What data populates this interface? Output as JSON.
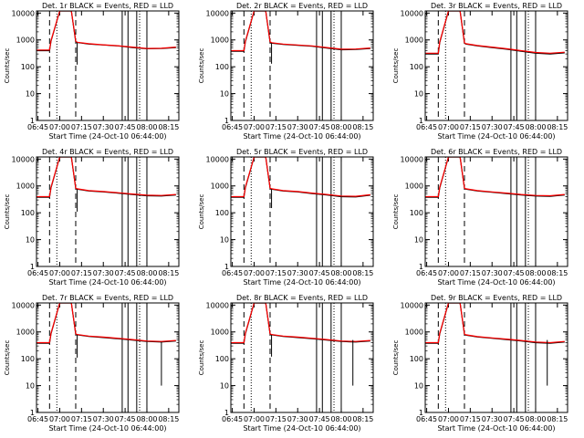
{
  "chart_data": [
    {
      "type": "line",
      "title": "Det. 1r  BLACK = Events, RED = LLD",
      "xlabel": "Start Time (24-Oct-10 06:44:00)",
      "ylabel": "Counts/sec",
      "x_ticks": [
        "06:45",
        "07:00",
        "07:15",
        "07:30",
        "07:45",
        "08:00",
        "08:15"
      ],
      "y_ticks": [
        "1",
        "10",
        "100",
        "1000",
        "10000"
      ],
      "y_scale": "log",
      "ylim": [
        1,
        12000
      ],
      "xlim": [
        "06:44",
        "08:22"
      ],
      "series": [
        {
          "color": "#000000",
          "x": [
            "06:44",
            "06:53",
            "06:54",
            "07:00",
            "07:08",
            "07:11",
            "07:12",
            "07:20",
            "07:30",
            "07:40",
            "07:50",
            "08:00",
            "08:10",
            "08:20"
          ],
          "y": [
            400,
            400,
            900,
            12000,
            12000,
            850,
            800,
            700,
            650,
            600,
            520,
            470,
            480,
            520
          ]
        },
        {
          "color": "#ff0000",
          "x": [
            "06:44",
            "06:53",
            "06:54",
            "07:00",
            "07:08",
            "07:11",
            "07:12",
            "07:20",
            "07:30",
            "07:40",
            "07:50",
            "08:00",
            "08:10",
            "08:20"
          ],
          "y": [
            420,
            420,
            950,
            12000,
            12000,
            900,
            820,
            720,
            660,
            610,
            540,
            480,
            490,
            540
          ]
        }
      ],
      "vlines": {
        "dashed": [
          "06:53",
          "07:11"
        ],
        "dotted": [
          "06:58",
          "07:55"
        ],
        "solid": [
          "07:43",
          "07:47",
          "07:53",
          "08:00"
        ]
      },
      "drops": [
        {
          "x": "07:12",
          "y": 120
        }
      ]
    },
    {
      "type": "line",
      "title": "Det. 2r  BLACK = Events, RED = LLD",
      "xlabel": "Start Time (24-Oct-10 06:44:00)",
      "ylabel": "Counts/sec",
      "x_ticks": [
        "06:45",
        "07:00",
        "07:15",
        "07:30",
        "07:45",
        "08:00",
        "08:15"
      ],
      "y_ticks": [
        "1",
        "10",
        "100",
        "1000",
        "10000"
      ],
      "y_scale": "log",
      "ylim": [
        1,
        12000
      ],
      "xlim": [
        "06:44",
        "08:22"
      ],
      "series": [
        {
          "color": "#000000",
          "x": [
            "06:44",
            "06:53",
            "06:54",
            "07:00",
            "07:08",
            "07:11",
            "07:12",
            "07:20",
            "07:30",
            "07:40",
            "07:50",
            "08:00",
            "08:10",
            "08:20"
          ],
          "y": [
            380,
            380,
            850,
            12000,
            12000,
            800,
            760,
            680,
            630,
            580,
            500,
            430,
            440,
            480
          ]
        },
        {
          "color": "#ff0000",
          "x": [
            "06:44",
            "06:53",
            "06:54",
            "07:00",
            "07:08",
            "07:11",
            "07:12",
            "07:20",
            "07:30",
            "07:40",
            "07:50",
            "08:00",
            "08:10",
            "08:20"
          ],
          "y": [
            400,
            400,
            900,
            12000,
            12000,
            850,
            790,
            700,
            650,
            600,
            520,
            450,
            460,
            500
          ]
        }
      ],
      "vlines": {
        "dashed": [
          "06:53",
          "07:11"
        ],
        "dotted": [
          "06:58",
          "07:55"
        ],
        "solid": [
          "07:43",
          "07:47",
          "07:53",
          "08:00"
        ]
      },
      "drops": [
        {
          "x": "07:12",
          "y": 130
        }
      ]
    },
    {
      "type": "line",
      "title": "Det. 3r  BLACK = Events, RED = LLD",
      "xlabel": "Start Time (24-Oct-10 06:44:00)",
      "ylabel": "Counts/sec",
      "x_ticks": [
        "06:45",
        "07:00",
        "07:15",
        "07:30",
        "07:45",
        "08:00",
        "08:15"
      ],
      "y_ticks": [
        "1",
        "10",
        "100",
        "1000",
        "10000"
      ],
      "y_scale": "log",
      "ylim": [
        1,
        12000
      ],
      "xlim": [
        "06:44",
        "08:22"
      ],
      "series": [
        {
          "color": "#000000",
          "x": [
            "06:44",
            "06:53",
            "06:54",
            "07:00",
            "07:08",
            "07:11",
            "07:12",
            "07:20",
            "07:30",
            "07:40",
            "07:50",
            "08:00",
            "08:10",
            "08:20"
          ],
          "y": [
            300,
            300,
            800,
            12000,
            12000,
            750,
            700,
            600,
            520,
            450,
            380,
            320,
            300,
            330
          ]
        },
        {
          "color": "#ff0000",
          "x": [
            "06:44",
            "06:53",
            "06:54",
            "07:00",
            "07:08",
            "07:11",
            "07:12",
            "07:20",
            "07:30",
            "07:40",
            "07:50",
            "08:00",
            "08:10",
            "08:20"
          ],
          "y": [
            320,
            320,
            850,
            12000,
            12000,
            780,
            720,
            620,
            540,
            470,
            400,
            340,
            320,
            350
          ]
        }
      ],
      "vlines": {
        "dashed": [
          "06:53",
          "07:11"
        ],
        "dotted": [
          "06:58",
          "07:55"
        ],
        "solid": [
          "07:43",
          "07:47",
          "07:53",
          "08:00"
        ]
      },
      "drops": []
    },
    {
      "type": "line",
      "title": "Det. 4r  BLACK = Events, RED = LLD",
      "xlabel": "Start Time (24-Oct-10 06:44:00)",
      "ylabel": "Counts/sec",
      "x_ticks": [
        "06:45",
        "07:00",
        "07:15",
        "07:30",
        "07:45",
        "08:00",
        "08:15"
      ],
      "y_ticks": [
        "1",
        "10",
        "100",
        "1000",
        "10000"
      ],
      "y_scale": "log",
      "ylim": [
        1,
        12000
      ],
      "xlim": [
        "06:44",
        "08:22"
      ],
      "series": [
        {
          "color": "#000000",
          "x": [
            "06:44",
            "06:53",
            "06:54",
            "07:00",
            "07:08",
            "07:11",
            "07:12",
            "07:20",
            "07:30",
            "07:40",
            "07:50",
            "08:00",
            "08:10",
            "08:20"
          ],
          "y": [
            380,
            380,
            850,
            12000,
            12000,
            800,
            760,
            650,
            600,
            540,
            480,
            430,
            420,
            460
          ]
        },
        {
          "color": "#ff0000",
          "x": [
            "06:44",
            "06:53",
            "06:54",
            "07:00",
            "07:08",
            "07:11",
            "07:12",
            "07:20",
            "07:30",
            "07:40",
            "07:50",
            "08:00",
            "08:10",
            "08:20"
          ],
          "y": [
            400,
            400,
            900,
            12000,
            12000,
            830,
            780,
            670,
            620,
            560,
            500,
            450,
            440,
            480
          ]
        }
      ],
      "vlines": {
        "dashed": [
          "06:53",
          "07:11"
        ],
        "dotted": [
          "06:58",
          "07:55"
        ],
        "solid": [
          "07:43",
          "07:47",
          "07:53",
          "08:00"
        ]
      },
      "drops": [
        {
          "x": "07:12",
          "y": 110
        }
      ]
    },
    {
      "type": "line",
      "title": "Det. 5r  BLACK = Events, RED = LLD",
      "xlabel": "Start Time (24-Oct-10 06:44:00)",
      "ylabel": "Counts/sec",
      "x_ticks": [
        "06:45",
        "07:00",
        "07:15",
        "07:30",
        "07:45",
        "08:00",
        "08:15"
      ],
      "y_ticks": [
        "1",
        "10",
        "100",
        "1000",
        "10000"
      ],
      "y_scale": "log",
      "ylim": [
        1,
        12000
      ],
      "xlim": [
        "06:44",
        "08:22"
      ],
      "series": [
        {
          "color": "#000000",
          "x": [
            "06:44",
            "06:53",
            "06:54",
            "07:00",
            "07:08",
            "07:11",
            "07:12",
            "07:20",
            "07:30",
            "07:40",
            "07:50",
            "08:00",
            "08:10",
            "08:20"
          ],
          "y": [
            380,
            380,
            850,
            12000,
            12000,
            800,
            760,
            650,
            600,
            520,
            460,
            400,
            390,
            450
          ]
        },
        {
          "color": "#ff0000",
          "x": [
            "06:44",
            "06:53",
            "06:54",
            "07:00",
            "07:08",
            "07:11",
            "07:12",
            "07:20",
            "07:30",
            "07:40",
            "07:50",
            "08:00",
            "08:10",
            "08:20"
          ],
          "y": [
            400,
            400,
            900,
            12000,
            12000,
            830,
            780,
            670,
            620,
            540,
            480,
            420,
            410,
            470
          ]
        }
      ],
      "vlines": {
        "dashed": [
          "06:53",
          "07:11"
        ],
        "dotted": [
          "06:58",
          "07:55"
        ],
        "solid": [
          "07:43",
          "07:47",
          "07:53",
          "08:00"
        ]
      },
      "drops": [
        {
          "x": "07:12",
          "y": 150
        }
      ]
    },
    {
      "type": "line",
      "title": "Det. 6r  BLACK = Events, RED = LLD",
      "xlabel": "Start Time (24-Oct-10 06:44:00)",
      "ylabel": "Counts/sec",
      "x_ticks": [
        "06:45",
        "07:00",
        "07:15",
        "07:30",
        "07:45",
        "08:00",
        "08:15"
      ],
      "y_ticks": [
        "1",
        "10",
        "100",
        "1000",
        "10000"
      ],
      "y_scale": "log",
      "ylim": [
        1,
        12000
      ],
      "xlim": [
        "06:44",
        "08:22"
      ],
      "series": [
        {
          "color": "#000000",
          "x": [
            "06:44",
            "06:53",
            "06:54",
            "07:00",
            "07:08",
            "07:11",
            "07:12",
            "07:20",
            "07:30",
            "07:40",
            "07:50",
            "08:00",
            "08:10",
            "08:20"
          ],
          "y": [
            380,
            380,
            850,
            12000,
            12000,
            800,
            760,
            650,
            580,
            520,
            460,
            420,
            410,
            460
          ]
        },
        {
          "color": "#ff0000",
          "x": [
            "06:44",
            "06:53",
            "06:54",
            "07:00",
            "07:08",
            "07:11",
            "07:12",
            "07:20",
            "07:30",
            "07:40",
            "07:50",
            "08:00",
            "08:10",
            "08:20"
          ],
          "y": [
            400,
            400,
            900,
            12000,
            12000,
            830,
            780,
            670,
            600,
            540,
            480,
            440,
            430,
            480
          ]
        }
      ],
      "vlines": {
        "dashed": [
          "06:53",
          "07:11"
        ],
        "dotted": [
          "06:58",
          "07:55"
        ],
        "solid": [
          "07:43",
          "07:47",
          "07:53",
          "08:00"
        ]
      },
      "drops": []
    },
    {
      "type": "line",
      "title": "Det. 7r  BLACK = Events, RED = LLD",
      "xlabel": "Start Time (24-Oct-10 06:44:00)",
      "ylabel": "Counts/sec",
      "x_ticks": [
        "06:45",
        "07:00",
        "07:15",
        "07:30",
        "07:45",
        "08:00",
        "08:15"
      ],
      "y_ticks": [
        "1",
        "10",
        "100",
        "1000",
        "10000"
      ],
      "y_scale": "log",
      "ylim": [
        1,
        12000
      ],
      "xlim": [
        "06:44",
        "08:22"
      ],
      "series": [
        {
          "color": "#000000",
          "x": [
            "06:44",
            "06:53",
            "06:54",
            "07:00",
            "07:08",
            "07:11",
            "07:12",
            "07:20",
            "07:30",
            "07:40",
            "07:50",
            "08:00",
            "08:10",
            "08:20"
          ],
          "y": [
            380,
            380,
            850,
            12000,
            12000,
            820,
            780,
            680,
            620,
            560,
            500,
            440,
            420,
            460
          ]
        },
        {
          "color": "#ff0000",
          "x": [
            "06:44",
            "06:53",
            "06:54",
            "07:00",
            "07:08",
            "07:11",
            "07:12",
            "07:20",
            "07:30",
            "07:40",
            "07:50",
            "08:00",
            "08:10",
            "08:20"
          ],
          "y": [
            400,
            400,
            900,
            12000,
            12000,
            850,
            800,
            700,
            640,
            580,
            520,
            460,
            440,
            480
          ]
        }
      ],
      "vlines": {
        "dashed": [
          "06:53",
          "07:11"
        ],
        "dotted": [
          "06:58",
          "07:55"
        ],
        "solid": [
          "07:43",
          "07:47",
          "07:53",
          "08:00"
        ]
      },
      "drops": [
        {
          "x": "07:12",
          "y": 110
        },
        {
          "x": "08:10",
          "y": 10
        }
      ]
    },
    {
      "type": "line",
      "title": "Det. 8r  BLACK = Events, RED = LLD",
      "xlabel": "Start Time (24-Oct-10 06:44:00)",
      "ylabel": "Counts/sec",
      "x_ticks": [
        "06:45",
        "07:00",
        "07:15",
        "07:30",
        "07:45",
        "08:00",
        "08:15"
      ],
      "y_ticks": [
        "1",
        "10",
        "100",
        "1000",
        "10000"
      ],
      "y_scale": "log",
      "ylim": [
        1,
        12000
      ],
      "xlim": [
        "06:44",
        "08:22"
      ],
      "series": [
        {
          "color": "#000000",
          "x": [
            "06:44",
            "06:53",
            "06:54",
            "07:00",
            "07:08",
            "07:11",
            "07:12",
            "07:20",
            "07:30",
            "07:40",
            "07:50",
            "08:00",
            "08:10",
            "08:20"
          ],
          "y": [
            380,
            380,
            850,
            12000,
            12000,
            820,
            780,
            680,
            620,
            560,
            500,
            440,
            420,
            460
          ]
        },
        {
          "color": "#ff0000",
          "x": [
            "06:44",
            "06:53",
            "06:54",
            "07:00",
            "07:08",
            "07:11",
            "07:12",
            "07:20",
            "07:30",
            "07:40",
            "07:50",
            "08:00",
            "08:10",
            "08:20"
          ],
          "y": [
            400,
            400,
            900,
            12000,
            12000,
            850,
            800,
            700,
            640,
            580,
            520,
            460,
            440,
            480
          ]
        }
      ],
      "vlines": {
        "dashed": [
          "06:53",
          "07:11"
        ],
        "dotted": [
          "06:58",
          "07:55"
        ],
        "solid": [
          "07:43",
          "07:47",
          "07:53",
          "08:00"
        ]
      },
      "drops": [
        {
          "x": "07:12",
          "y": 120
        },
        {
          "x": "08:08",
          "y": 10
        }
      ]
    },
    {
      "type": "line",
      "title": "Det. 9r  BLACK = Events, RED = LLD",
      "xlabel": "Start Time (24-Oct-10 06:44:00)",
      "ylabel": "Counts/sec",
      "x_ticks": [
        "06:45",
        "07:00",
        "07:15",
        "07:30",
        "07:45",
        "08:00",
        "08:15"
      ],
      "y_ticks": [
        "1",
        "10",
        "100",
        "1000",
        "10000"
      ],
      "y_scale": "log",
      "ylim": [
        1,
        12000
      ],
      "xlim": [
        "06:44",
        "08:22"
      ],
      "series": [
        {
          "color": "#000000",
          "x": [
            "06:44",
            "06:53",
            "06:54",
            "07:00",
            "07:08",
            "07:11",
            "07:12",
            "07:20",
            "07:30",
            "07:40",
            "07:50",
            "08:00",
            "08:10",
            "08:20"
          ],
          "y": [
            380,
            380,
            850,
            12000,
            12000,
            800,
            760,
            650,
            580,
            520,
            460,
            400,
            380,
            420
          ]
        },
        {
          "color": "#ff0000",
          "x": [
            "06:44",
            "06:53",
            "06:54",
            "07:00",
            "07:08",
            "07:11",
            "07:12",
            "07:20",
            "07:30",
            "07:40",
            "07:50",
            "08:00",
            "08:10",
            "08:20"
          ],
          "y": [
            400,
            400,
            900,
            12000,
            12000,
            830,
            780,
            670,
            600,
            540,
            480,
            420,
            400,
            440
          ]
        }
      ],
      "vlines": {
        "dashed": [
          "06:53",
          "07:11"
        ],
        "dotted": [
          "06:58",
          "07:55"
        ],
        "solid": [
          "07:43",
          "07:47",
          "07:53",
          "08:00"
        ]
      },
      "drops": [
        {
          "x": "08:08",
          "y": 10
        }
      ]
    }
  ]
}
